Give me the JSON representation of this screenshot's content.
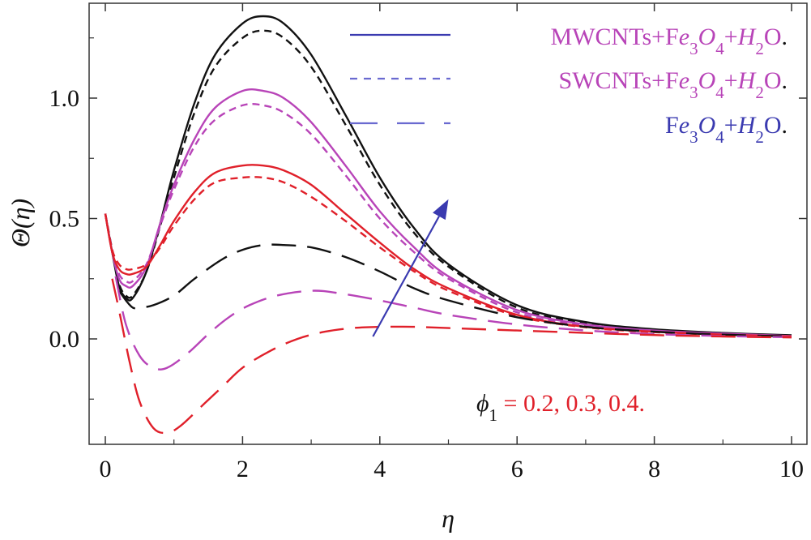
{
  "chart_data": {
    "type": "line",
    "xlabel": "η",
    "ylabel": "Θ(η)",
    "xlim": [
      0,
      10
    ],
    "ylim": [
      -0.43,
      1.38
    ],
    "xticks": [
      "0",
      "2",
      "4",
      "6",
      "8",
      "10"
    ],
    "yticks": [
      "0.0",
      "0.5",
      "1.0"
    ],
    "xtick_values": [
      0,
      2,
      4,
      6,
      8,
      10
    ],
    "ytick_values": [
      0.0,
      0.5,
      1.0
    ],
    "grid": false,
    "legend_placement": "top-right",
    "legend": [
      {
        "label_parts": [
          {
            "t": "MWCNTs+F"
          },
          {
            "t": "e",
            "i": true
          },
          {
            "t": "3",
            "sub": true
          },
          {
            "t": "O",
            "i": true
          },
          {
            "t": "4",
            "sub": true
          },
          {
            "t": "+"
          },
          {
            "t": "H",
            "i": true
          },
          {
            "t": "2",
            "sub": true
          },
          {
            "t": "O"
          }
        ],
        "end": ".",
        "text_color": "#b844b8",
        "line_color": "#3a3ab0",
        "dash": "solid"
      },
      {
        "label_parts": [
          {
            "t": "SWCNTs+F"
          },
          {
            "t": "e",
            "i": true
          },
          {
            "t": "3",
            "sub": true
          },
          {
            "t": "O",
            "i": true
          },
          {
            "t": "4",
            "sub": true
          },
          {
            "t": "+"
          },
          {
            "t": "H",
            "i": true
          },
          {
            "t": "2",
            "sub": true
          },
          {
            "t": "O"
          }
        ],
        "end": ".",
        "text_color": "#b844b8",
        "line_color": "#6a6ad0",
        "dash": "short"
      },
      {
        "label_parts": [
          {
            "t": "F"
          },
          {
            "t": "e",
            "i": true
          },
          {
            "t": "3",
            "sub": true
          },
          {
            "t": "O",
            "i": true
          },
          {
            "t": "4",
            "sub": true
          },
          {
            "t": "+"
          },
          {
            "t": "H",
            "i": true
          },
          {
            "t": "2",
            "sub": true
          },
          {
            "t": "O"
          }
        ],
        "end": ".",
        "text_color": "#3a3ab0",
        "line_color": "#6a6ad0",
        "dash": "long"
      }
    ],
    "annotation": {
      "symbol": "ϕ",
      "sub": "1",
      "eq": " = ",
      "values": "0.2, 0.3, 0.4.",
      "symbol_color": "#111111",
      "values_color": "#e0202a"
    },
    "arrow": {
      "from": [
        3.9,
        0.01
      ],
      "to": [
        5.0,
        0.58
      ],
      "color": "#3a3ab0"
    },
    "colors": {
      "phi_0.2": "#e0202a",
      "phi_0.3": "#b844b8",
      "phi_0.4": "#111111",
      "axis": "#333333"
    },
    "series": [
      {
        "fluid": "MWCNTs",
        "phi": 0.4,
        "dash": "solid",
        "color": "#111111",
        "x": [
          0,
          0.1,
          0.2,
          0.3,
          0.4,
          0.6,
          0.8,
          1.0,
          1.3,
          1.6,
          2.0,
          2.3,
          2.6,
          3.0,
          3.5,
          4.0,
          4.5,
          5.0,
          6.0,
          7.0,
          8.0,
          9.0,
          10.0
        ],
        "y": [
          0.52,
          0.36,
          0.22,
          0.17,
          0.17,
          0.28,
          0.48,
          0.7,
          0.98,
          1.18,
          1.31,
          1.34,
          1.31,
          1.18,
          0.93,
          0.67,
          0.46,
          0.31,
          0.14,
          0.07,
          0.04,
          0.025,
          0.015
        ]
      },
      {
        "fluid": "SWCNTs",
        "phi": 0.4,
        "dash": "short",
        "color": "#111111",
        "x": [
          0,
          0.1,
          0.2,
          0.3,
          0.4,
          0.6,
          0.8,
          1.0,
          1.3,
          1.6,
          2.0,
          2.3,
          2.6,
          3.0,
          3.5,
          4.0,
          4.5,
          5.0,
          6.0,
          7.0,
          8.0,
          9.0,
          10.0
        ],
        "y": [
          0.52,
          0.37,
          0.23,
          0.18,
          0.18,
          0.28,
          0.47,
          0.67,
          0.94,
          1.13,
          1.25,
          1.28,
          1.25,
          1.13,
          0.89,
          0.64,
          0.44,
          0.3,
          0.13,
          0.065,
          0.038,
          0.023,
          0.014
        ]
      },
      {
        "fluid": "MWCNTs",
        "phi": 0.3,
        "dash": "solid",
        "color": "#b844b8",
        "x": [
          0,
          0.1,
          0.2,
          0.3,
          0.4,
          0.6,
          0.8,
          1.0,
          1.3,
          1.6,
          2.0,
          2.3,
          2.6,
          3.0,
          3.5,
          4.0,
          4.5,
          5.0,
          6.0,
          7.0,
          8.0,
          9.0,
          10.0
        ],
        "y": [
          0.52,
          0.36,
          0.25,
          0.22,
          0.22,
          0.3,
          0.48,
          0.64,
          0.83,
          0.96,
          1.03,
          1.03,
          1.0,
          0.9,
          0.72,
          0.53,
          0.38,
          0.26,
          0.12,
          0.06,
          0.035,
          0.022,
          0.012
        ]
      },
      {
        "fluid": "SWCNTs",
        "phi": 0.3,
        "dash": "short",
        "color": "#b844b8",
        "x": [
          0,
          0.1,
          0.2,
          0.3,
          0.4,
          0.6,
          0.8,
          1.0,
          1.3,
          1.6,
          2.0,
          2.3,
          2.6,
          3.0,
          3.5,
          4.0,
          4.5,
          5.0,
          6.0,
          7.0,
          8.0,
          9.0,
          10.0
        ],
        "y": [
          0.52,
          0.37,
          0.27,
          0.24,
          0.24,
          0.31,
          0.47,
          0.62,
          0.8,
          0.91,
          0.97,
          0.97,
          0.94,
          0.85,
          0.68,
          0.5,
          0.36,
          0.25,
          0.11,
          0.055,
          0.033,
          0.02,
          0.011
        ]
      },
      {
        "fluid": "MWCNTs",
        "phi": 0.2,
        "dash": "solid",
        "color": "#e0202a",
        "x": [
          0,
          0.1,
          0.2,
          0.3,
          0.4,
          0.6,
          0.8,
          1.0,
          1.3,
          1.6,
          2.0,
          2.3,
          2.6,
          3.0,
          3.5,
          4.0,
          4.5,
          5.0,
          6.0,
          7.0,
          8.0,
          9.0,
          10.0
        ],
        "y": [
          0.52,
          0.36,
          0.29,
          0.27,
          0.27,
          0.3,
          0.39,
          0.49,
          0.61,
          0.69,
          0.72,
          0.72,
          0.7,
          0.64,
          0.52,
          0.4,
          0.29,
          0.21,
          0.1,
          0.05,
          0.03,
          0.018,
          0.01
        ]
      },
      {
        "fluid": "SWCNTs",
        "phi": 0.2,
        "dash": "short",
        "color": "#e0202a",
        "x": [
          0,
          0.1,
          0.2,
          0.3,
          0.4,
          0.6,
          0.8,
          1.0,
          1.3,
          1.6,
          2.0,
          2.3,
          2.6,
          3.0,
          3.5,
          4.0,
          4.5,
          5.0,
          6.0,
          7.0,
          8.0,
          9.0,
          10.0
        ],
        "y": [
          0.52,
          0.37,
          0.31,
          0.29,
          0.29,
          0.31,
          0.38,
          0.47,
          0.58,
          0.65,
          0.67,
          0.67,
          0.65,
          0.59,
          0.49,
          0.38,
          0.28,
          0.2,
          0.095,
          0.048,
          0.028,
          0.017,
          0.01
        ]
      },
      {
        "fluid": "Fe3O4",
        "phi": 0.4,
        "dash": "long",
        "color": "#111111",
        "x": [
          0.2,
          0.3,
          0.4,
          0.5,
          0.7,
          1.0,
          1.3,
          1.7,
          2.0,
          2.3,
          2.6,
          3.0,
          3.5,
          4.0,
          4.5,
          5.0,
          6.0,
          7.0,
          8.0,
          9.0,
          10.0
        ],
        "y": [
          0.2,
          0.16,
          0.13,
          0.13,
          0.14,
          0.18,
          0.25,
          0.33,
          0.37,
          0.39,
          0.39,
          0.38,
          0.34,
          0.28,
          0.21,
          0.16,
          0.09,
          0.05,
          0.03,
          0.018,
          0.01
        ]
      },
      {
        "fluid": "Fe3O4",
        "phi": 0.3,
        "dash": "long",
        "color": "#b844b8",
        "x": [
          0.15,
          0.3,
          0.5,
          0.7,
          0.9,
          1.2,
          1.5,
          1.8,
          2.1,
          2.5,
          3.0,
          3.4,
          4.0,
          4.5,
          5.0,
          6.0,
          7.0,
          8.0,
          9.0,
          10.0
        ],
        "y": [
          0.26,
          0.06,
          -0.07,
          -0.12,
          -0.12,
          -0.06,
          0.02,
          0.09,
          0.14,
          0.18,
          0.2,
          0.19,
          0.16,
          0.13,
          0.1,
          0.06,
          0.035,
          0.02,
          0.012,
          0.007
        ]
      },
      {
        "fluid": "Fe3O4",
        "phi": 0.2,
        "dash": "long",
        "color": "#e0202a",
        "x": [
          0.1,
          0.2,
          0.35,
          0.5,
          0.7,
          0.9,
          1.1,
          1.4,
          1.7,
          2.0,
          2.4,
          2.8,
          3.2,
          3.6,
          4.0,
          4.5,
          5.0,
          6.0,
          7.0,
          8.0,
          9.0,
          10.0
        ],
        "y": [
          0.25,
          0.12,
          -0.09,
          -0.26,
          -0.37,
          -0.39,
          -0.36,
          -0.28,
          -0.2,
          -0.12,
          -0.05,
          0.0,
          0.03,
          0.045,
          0.05,
          0.05,
          0.045,
          0.035,
          0.025,
          0.016,
          0.01,
          0.006
        ]
      }
    ]
  }
}
